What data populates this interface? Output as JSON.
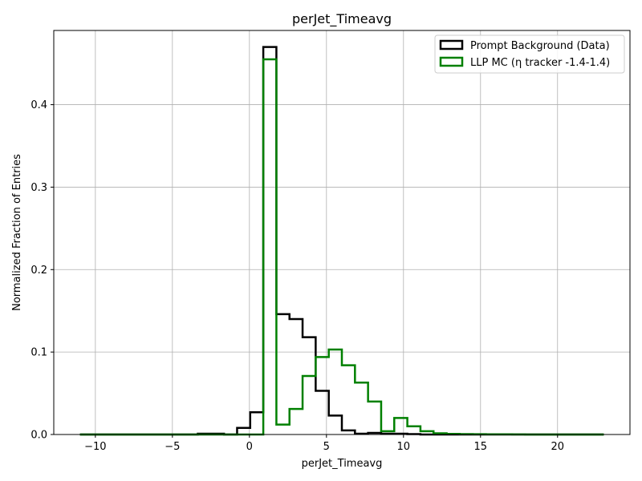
{
  "chart_data": {
    "type": "histogram",
    "title": "perJet_Timeavg",
    "xlabel": "perJet_Timeavg",
    "ylabel": "Normalized Fraction of Entries",
    "xlim": [
      -12.7,
      24.7
    ],
    "ylim": [
      0,
      0.49
    ],
    "xticks": [
      -10,
      -5,
      0,
      5,
      10,
      15,
      20
    ],
    "xtick_labels": [
      "−10",
      "−5",
      "0",
      "5",
      "10",
      "15",
      "20"
    ],
    "yticks": [
      0.0,
      0.1,
      0.2,
      0.3,
      0.4
    ],
    "ytick_labels": [
      "0.0",
      "0.1",
      "0.2",
      "0.3",
      "0.4"
    ],
    "grid": true,
    "legend_position": "top-right",
    "series": [
      {
        "name": "Prompt Background (Data)",
        "color": "#000000",
        "x_start": -11.0,
        "x_end": 23.0,
        "bin_width": 0.85,
        "values": [
          0,
          0,
          0,
          0,
          0,
          0,
          0,
          0,
          0,
          0.001,
          0.001,
          0,
          0.008,
          0.027,
          0.47,
          0.146,
          0.14,
          0.118,
          0.053,
          0.023,
          0.005,
          0.001,
          0.002,
          0.001,
          0.001,
          0.0005,
          0,
          0,
          0,
          0,
          0,
          0,
          0,
          0,
          0,
          0,
          0,
          0,
          0,
          0
        ]
      },
      {
        "name": "LLP MC (η tracker -1.4-1.4)",
        "color": "#008000",
        "x_start": -11.0,
        "x_end": 23.0,
        "bin_width": 0.85,
        "values": [
          0,
          0,
          0,
          0,
          0,
          0,
          0,
          0,
          0,
          0,
          0,
          0,
          0,
          0,
          0.455,
          0.012,
          0.031,
          0.071,
          0.094,
          0.103,
          0.084,
          0.063,
          0.04,
          0.004,
          0.02,
          0.01,
          0.004,
          0.0015,
          0.0007,
          0.0005,
          0.0004,
          0.0003,
          0.0002,
          0.0001,
          0,
          0,
          0,
          0,
          0,
          0
        ]
      }
    ]
  }
}
